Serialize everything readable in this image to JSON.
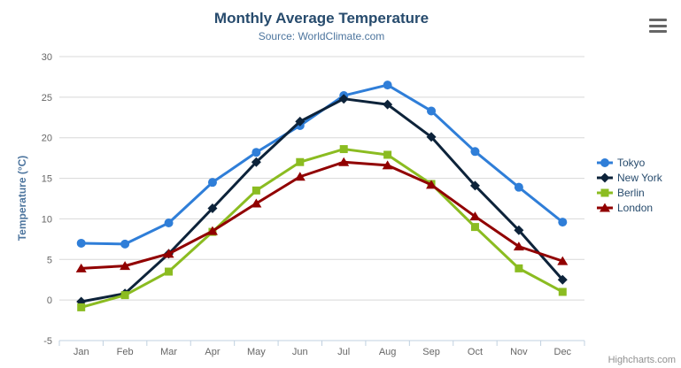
{
  "header": {
    "title": "Monthly Average Temperature",
    "subtitle": "Source: WorldClimate.com"
  },
  "export_button": {
    "icon": "hamburger-icon"
  },
  "credit": "Highcharts.com",
  "colors": {
    "title": "#274b6d",
    "subtitle": "#4d759e",
    "axis_title": "#4d759e",
    "tick_label": "#666666",
    "gridline": "#d8d8d8",
    "axis_line": "#c0d0e0",
    "legend_text": "#274b6d",
    "credit": "#909090"
  },
  "chart_data": {
    "type": "line",
    "title": "Monthly Average Temperature",
    "subtitle": "Source: WorldClimate.com",
    "xlabel": "",
    "ylabel": "Temperature (°C)",
    "categories": [
      "Jan",
      "Feb",
      "Mar",
      "Apr",
      "May",
      "Jun",
      "Jul",
      "Aug",
      "Sep",
      "Oct",
      "Nov",
      "Dec"
    ],
    "series": [
      {
        "name": "Tokyo",
        "color": "#2f7ed8",
        "marker": "circle",
        "values": [
          7.0,
          6.9,
          9.5,
          14.5,
          18.2,
          21.5,
          25.2,
          26.5,
          23.3,
          18.3,
          13.9,
          9.6
        ]
      },
      {
        "name": "New York",
        "color": "#0d233a",
        "marker": "diamond",
        "values": [
          -0.2,
          0.8,
          5.7,
          11.3,
          17.0,
          22.0,
          24.8,
          24.1,
          20.1,
          14.1,
          8.6,
          2.5
        ]
      },
      {
        "name": "Berlin",
        "color": "#8bbc21",
        "marker": "square",
        "values": [
          -0.9,
          0.6,
          3.5,
          8.4,
          13.5,
          17.0,
          18.6,
          17.9,
          14.3,
          9.0,
          3.9,
          1.0
        ]
      },
      {
        "name": "London",
        "color": "#910000",
        "marker": "triangle",
        "values": [
          3.9,
          4.2,
          5.7,
          8.5,
          11.9,
          15.2,
          17.0,
          16.6,
          14.2,
          10.3,
          6.6,
          4.8
        ]
      }
    ],
    "ylim": [
      -5,
      30
    ],
    "ytick_step": 5,
    "grid": true,
    "legend_position": "right"
  }
}
